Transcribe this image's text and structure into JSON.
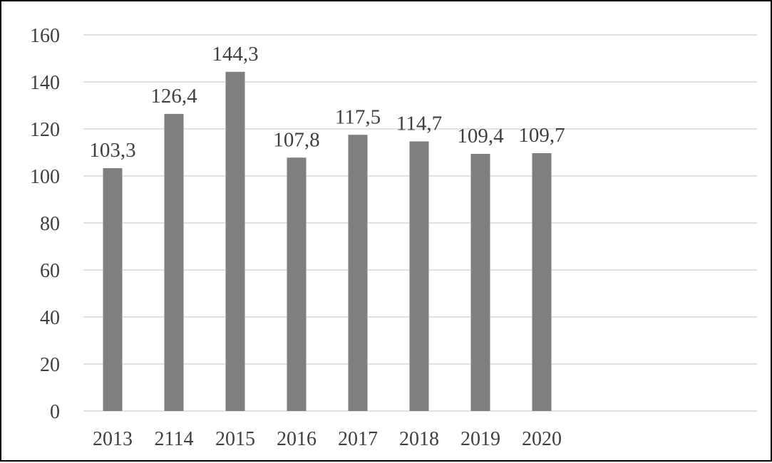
{
  "chart_data": {
    "type": "bar",
    "title": "",
    "xlabel": "",
    "ylabel": "",
    "categories": [
      "2013",
      "2114",
      "2015",
      "2016",
      "2017",
      "2018",
      "2019",
      "2020"
    ],
    "values": [
      103.3,
      126.4,
      144.3,
      107.8,
      117.5,
      114.7,
      109.4,
      109.7
    ],
    "data_labels": [
      "103,3",
      "126,4",
      "144,3",
      "107,8",
      "117,5",
      "114,7",
      "109,4",
      "109,7"
    ],
    "ylim": [
      0,
      160
    ],
    "yticks": [
      0,
      20,
      40,
      60,
      80,
      100,
      120,
      140,
      160
    ],
    "grid": true,
    "legend": "none"
  },
  "colors": {
    "bar": "#7f7f7f",
    "grid": "#d9d9d9",
    "text": "#404040",
    "border": "#000000"
  }
}
